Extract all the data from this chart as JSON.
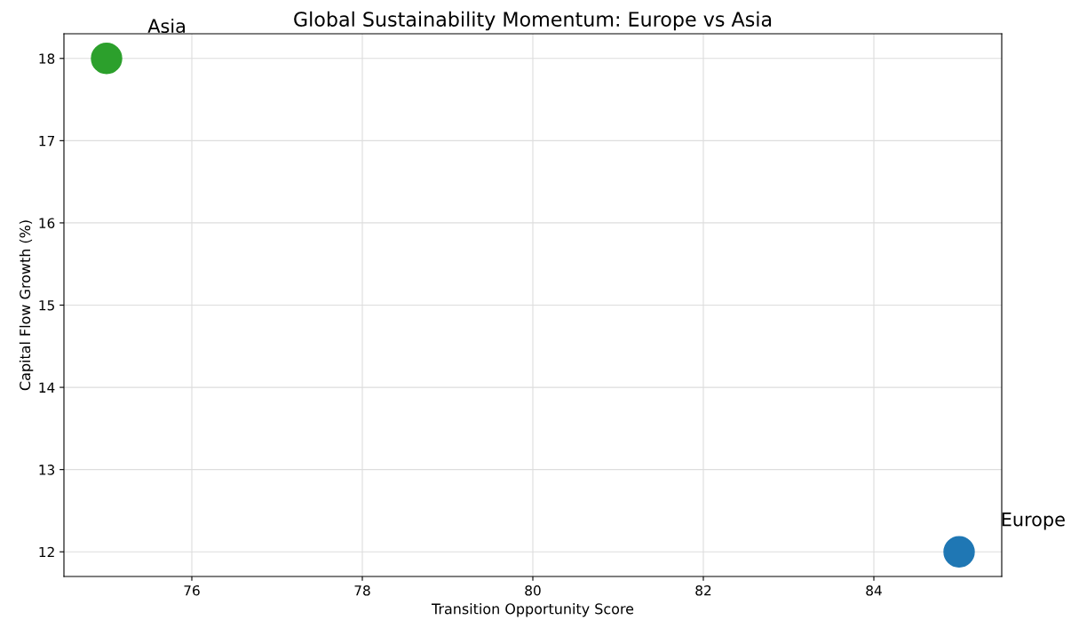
{
  "chart_data": {
    "type": "scatter",
    "title": "Global Sustainability Momentum: Europe vs Asia",
    "xlabel": "Transition Opportunity Score",
    "ylabel": "Capital Flow Growth (%)",
    "series": [
      {
        "name": "Europe",
        "color": "#1f77b4",
        "x": [
          85
        ],
        "values": [
          12
        ]
      },
      {
        "name": "Asia",
        "color": "#2ca02c",
        "x": [
          75
        ],
        "values": [
          18
        ]
      }
    ],
    "xlim": [
      74.5,
      85.5
    ],
    "xticks": [
      76,
      78,
      80,
      82,
      84
    ],
    "ylim": [
      11.7,
      18.3
    ],
    "yticks": [
      12,
      13,
      14,
      15,
      16,
      17,
      18
    ],
    "grid": true,
    "marker": "circle"
  }
}
